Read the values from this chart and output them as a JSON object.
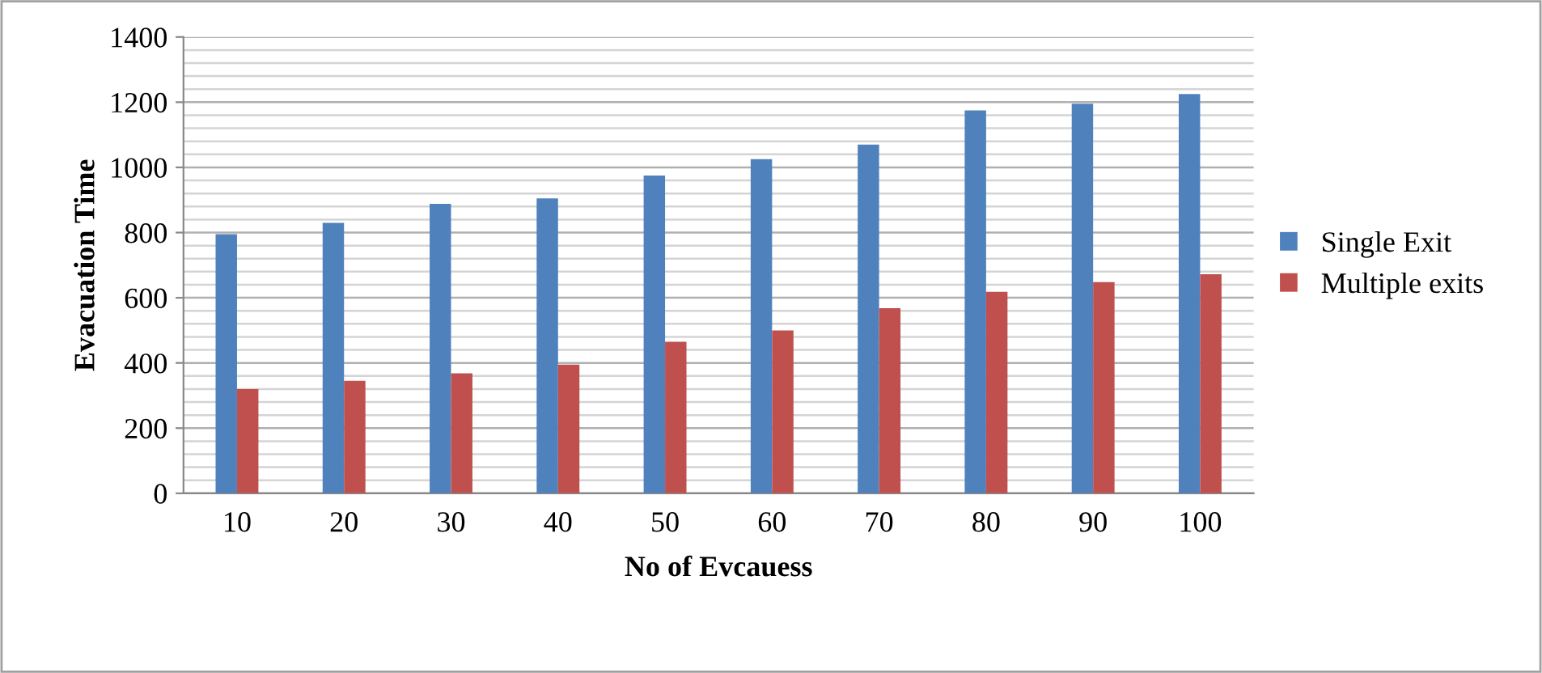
{
  "chart_data": {
    "type": "bar",
    "xlabel": "No of Evcauess",
    "ylabel": "Evacuation Time",
    "categories": [
      "10",
      "20",
      "30",
      "40",
      "50",
      "60",
      "70",
      "80",
      "90",
      "100"
    ],
    "series": [
      {
        "name": "Single Exit",
        "color": "#4f81bd",
        "values": [
          795,
          830,
          888,
          905,
          975,
          1025,
          1070,
          1175,
          1195,
          1225
        ]
      },
      {
        "name": "Multiple exits",
        "color": "#c0504d",
        "values": [
          320,
          345,
          368,
          395,
          465,
          500,
          568,
          618,
          648,
          672
        ]
      }
    ],
    "ylim": [
      0,
      1400
    ],
    "yticks": [
      0,
      {
        "value": 40,
        "label": null
      },
      {
        "value": 80,
        "label": null
      },
      {
        "value": 120,
        "label": null
      },
      {
        "value": 160,
        "label": null
      },
      200,
      {
        "value": 240,
        "label": null
      },
      {
        "value": 280,
        "label": null
      },
      {
        "value": 320,
        "label": null
      },
      {
        "value": 360,
        "label": null
      },
      400,
      {
        "value": 440,
        "label": null
      },
      {
        "value": 480,
        "label": null
      },
      {
        "value": 520,
        "label": null
      },
      {
        "value": 560,
        "label": null
      },
      600,
      {
        "value": 640,
        "label": null
      },
      {
        "value": 680,
        "label": null
      },
      {
        "value": 720,
        "label": null
      },
      {
        "value": 760,
        "label": null
      },
      800,
      {
        "value": 840,
        "label": null
      },
      {
        "value": 880,
        "label": null
      },
      {
        "value": 920,
        "label": null
      },
      {
        "value": 960,
        "label": null
      },
      1000,
      {
        "value": 1040,
        "label": null
      },
      {
        "value": 1080,
        "label": null
      },
      {
        "value": 1120,
        "label": null
      },
      {
        "value": 1160,
        "label": null
      },
      1200,
      {
        "value": 1240,
        "label": null
      },
      {
        "value": 1280,
        "label": null
      },
      {
        "value": 1320,
        "label": null
      },
      {
        "value": 1360,
        "label": null
      },
      1400
    ],
    "grid": "y",
    "legend": "right"
  }
}
